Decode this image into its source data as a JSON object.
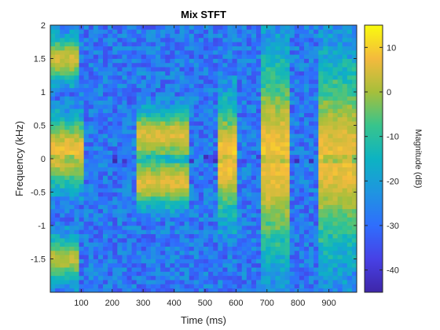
{
  "chart_data": {
    "type": "heatmap",
    "title": "Mix STFT",
    "xlabel": "Time (ms)",
    "ylabel": "Frequency (kHz)",
    "colorbar_label": "Magnitude (dB)",
    "colormap": "parula",
    "xlim": [
      0,
      990
    ],
    "ylim": [
      -2,
      2
    ],
    "clim": [
      -45,
      15
    ],
    "x_ticks": [
      100,
      200,
      300,
      400,
      500,
      600,
      700,
      800,
      900
    ],
    "x_tick_labels": [
      "100",
      "200",
      "300",
      "400",
      "500",
      "600",
      "700",
      "800",
      "900"
    ],
    "y_ticks": [
      2,
      1.5,
      1,
      0.5,
      0,
      -0.5,
      -1,
      -1.5
    ],
    "y_tick_labels": [
      "2",
      "1.5",
      "1",
      "0.5",
      "0",
      "-0.5",
      "-1",
      "-1.5"
    ],
    "colorbar_ticks": [
      10,
      0,
      -10,
      -20,
      -30,
      -40
    ],
    "colorbar_tick_labels": [
      "10",
      "0",
      "-10",
      "-20",
      "-30",
      "-40"
    ],
    "time_bins": 64,
    "freq_bins": 64,
    "components": [
      {
        "t_start": 0,
        "t_end": 110,
        "f_center": 0.1,
        "f_halfwidth": 0.55,
        "level_db": 8
      },
      {
        "t_start": 0,
        "t_end": 90,
        "f_center": 1.5,
        "f_halfwidth": 0.35,
        "level_db": 4
      },
      {
        "t_start": 0,
        "t_end": 90,
        "f_center": -1.5,
        "f_halfwidth": 0.35,
        "level_db": 2
      },
      {
        "t_start": 280,
        "t_end": 450,
        "f_center": 0.35,
        "f_halfwidth": 0.4,
        "level_db": 5
      },
      {
        "t_start": 280,
        "t_end": 450,
        "f_center": -0.35,
        "f_halfwidth": 0.4,
        "level_db": 5
      },
      {
        "t_start": 540,
        "t_end": 610,
        "f_center": 0.0,
        "f_halfwidth": 0.9,
        "level_db": 9
      },
      {
        "t_start": 680,
        "t_end": 780,
        "f_center": 0.0,
        "f_halfwidth": 1.6,
        "level_db": 8
      },
      {
        "t_start": 870,
        "t_end": 990,
        "f_center": 0.0,
        "f_halfwidth": 1.5,
        "level_db": 7
      }
    ]
  }
}
